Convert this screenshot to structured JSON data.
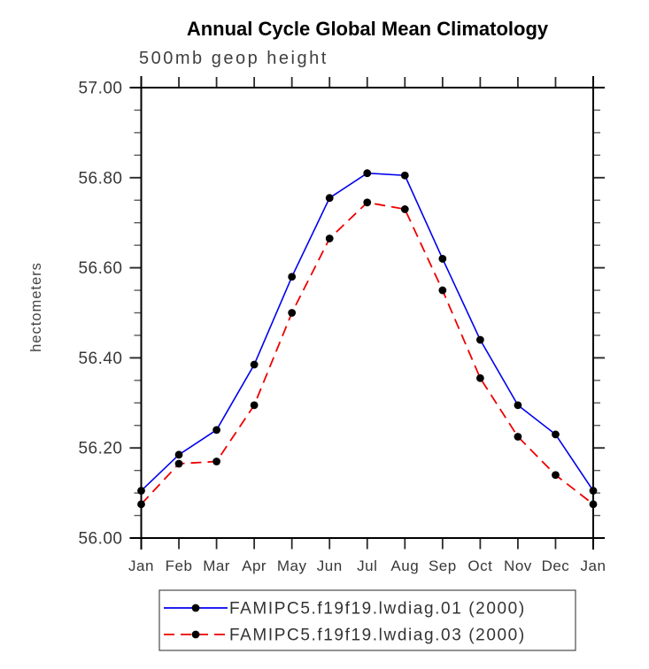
{
  "title": "Annual Cycle Global Mean Climatology",
  "subtitle": "500mb geop height",
  "chart_data": {
    "type": "line",
    "categories": [
      "Jan",
      "Feb",
      "Mar",
      "Apr",
      "May",
      "Jun",
      "Jul",
      "Aug",
      "Sep",
      "Oct",
      "Nov",
      "Dec",
      "Jan"
    ],
    "series": [
      {
        "name": "FAMIPC5.f19f19.lwdiag.01 (2000)",
        "color": "#0000ee",
        "line_style": "solid",
        "marker": "filled-circle",
        "marker_color": "#000000",
        "values": [
          56.105,
          56.185,
          56.24,
          56.385,
          56.58,
          56.755,
          56.81,
          56.805,
          56.62,
          56.44,
          56.295,
          56.23,
          56.105
        ]
      },
      {
        "name": "FAMIPC5.f19f19.lwdiag.03 (2000)",
        "color": "#ee0000",
        "line_style": "dashed",
        "marker": "filled-circle",
        "marker_color": "#000000",
        "values": [
          56.075,
          56.165,
          56.17,
          56.295,
          56.5,
          56.665,
          56.745,
          56.73,
          56.55,
          56.355,
          56.225,
          56.14,
          56.075
        ]
      }
    ],
    "xlabel": "",
    "ylabel": "hectometers",
    "ylim": [
      56.0,
      57.0
    ],
    "ytick_major_step": 0.2,
    "ytick_minor_step": 0.05,
    "ytick_decimals": 2,
    "grid": false,
    "legend_position": "bottom"
  },
  "colors": {
    "axis": "#000000",
    "tick_major": "#2a2a2a",
    "tick_minor": "#5a5a5a",
    "tick_label": "#383838",
    "legend_border": "#4a4a4a"
  }
}
